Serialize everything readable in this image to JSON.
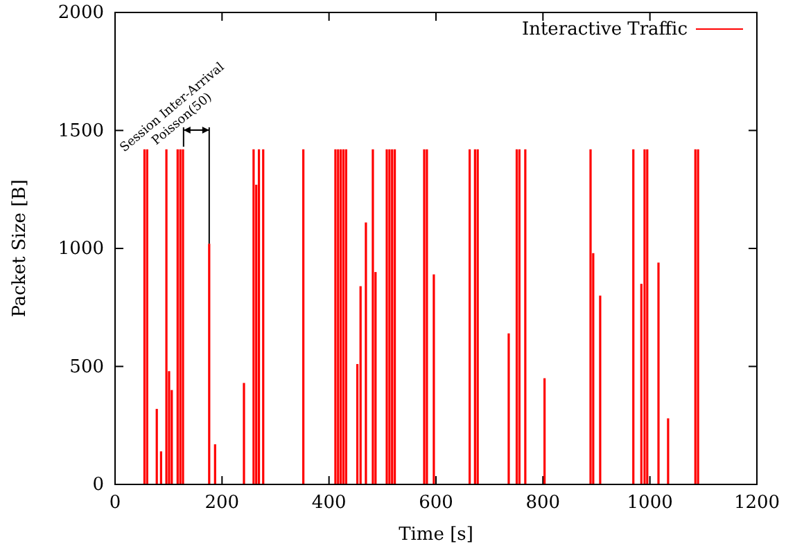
{
  "chart_data": {
    "type": "bar",
    "xlabel": "Time [s]",
    "ylabel": "Packet Size [B]",
    "xlim": [
      0,
      1200
    ],
    "xticks": [
      0,
      200,
      400,
      600,
      800,
      1000,
      1200
    ],
    "ylim": [
      0,
      2000
    ],
    "yticks": [
      0,
      500,
      1000,
      1500,
      2000
    ],
    "legend": "top right",
    "grid": false,
    "annotations": [
      {
        "text": "Session Inter-Arrival\nPoisson(50)",
        "x": 176,
        "y": 1020
      }
    ],
    "series": [
      {
        "name": "Interactive Traffic",
        "color": "#ff0000",
        "x": [
          55,
          60,
          78,
          86,
          96,
          101,
          106,
          117,
          122,
          127,
          176,
          187,
          241,
          259,
          264,
          269,
          277,
          352,
          412,
          417,
          422,
          427,
          432,
          453,
          459,
          469,
          482,
          487,
          508,
          513,
          518,
          523,
          578,
          583,
          596,
          663,
          673,
          678,
          736,
          751,
          756,
          767,
          803,
          889,
          894,
          907,
          969,
          984,
          990,
          995,
          1016,
          1034,
          1085,
          1090
        ],
        "values": [
          1420,
          1420,
          320,
          140,
          1420,
          480,
          400,
          1420,
          1420,
          1420,
          1020,
          170,
          430,
          1420,
          1270,
          1420,
          1420,
          1420,
          1420,
          1420,
          1420,
          1420,
          1420,
          510,
          840,
          1110,
          1420,
          900,
          1420,
          1420,
          1420,
          1420,
          1420,
          1420,
          890,
          1420,
          1420,
          1420,
          640,
          1420,
          1420,
          1420,
          450,
          1420,
          980,
          800,
          1420,
          850,
          1420,
          1420,
          940,
          280,
          1420,
          1420
        ]
      }
    ]
  }
}
